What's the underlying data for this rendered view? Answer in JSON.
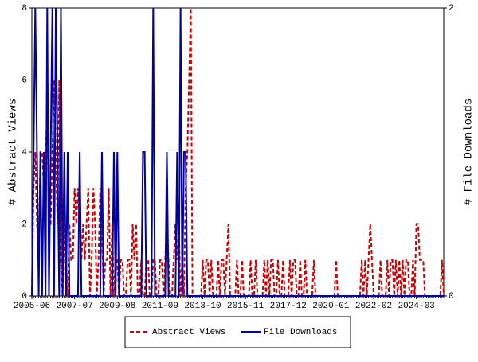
{
  "chart_data": {
    "type": "line",
    "ylabel": "# Abstract Views",
    "y2label": "# File Downloads",
    "categories": [
      "2005-06",
      null,
      null,
      null,
      null,
      null,
      null,
      null,
      null,
      null,
      null,
      null,
      null,
      null,
      null,
      null,
      null,
      null,
      null,
      null,
      null,
      null,
      null,
      null,
      null,
      "2007-07",
      null,
      null,
      null,
      null,
      null,
      null,
      null,
      null,
      null,
      null,
      null,
      null,
      null,
      null,
      null,
      null,
      null,
      null,
      null,
      null,
      null,
      null,
      null,
      null,
      "2009-08",
      null,
      null,
      null,
      null,
      null,
      null,
      null,
      null,
      null,
      null,
      null,
      null,
      null,
      null,
      null,
      null,
      null,
      null,
      null,
      null,
      null,
      null,
      null,
      null,
      "2011-09",
      null,
      null,
      null,
      null,
      null,
      null,
      null,
      null,
      null,
      null,
      null,
      null,
      null,
      null,
      null,
      null,
      null,
      null,
      null,
      null,
      null,
      null,
      null,
      null,
      "2013-10",
      null,
      null,
      null,
      null,
      null,
      null,
      null,
      null,
      null,
      null,
      null,
      null,
      null,
      null,
      null,
      null,
      null,
      null,
      null,
      null,
      null,
      null,
      null,
      null,
      "2015-11",
      null,
      null,
      null,
      null,
      null,
      null,
      null,
      null,
      null,
      null,
      null,
      null,
      null,
      null,
      null,
      null,
      null,
      null,
      null,
      null,
      null,
      null,
      null,
      null,
      "2017-12",
      null,
      null,
      null,
      null,
      null,
      null,
      null,
      null,
      null,
      null,
      null,
      null,
      null,
      null,
      null,
      null,
      null,
      null,
      null,
      null,
      null,
      null,
      null,
      null,
      "2020-01",
      null,
      null,
      null,
      null,
      null,
      null,
      null,
      null,
      null,
      null,
      null,
      null,
      null,
      null,
      null,
      null,
      null,
      null,
      null,
      null,
      null,
      null,
      null,
      null,
      "2022-02",
      null,
      null,
      null,
      null,
      null,
      null,
      null,
      null,
      null,
      null,
      null,
      null,
      null,
      null,
      null,
      null,
      null,
      null,
      null,
      null,
      null,
      null,
      null,
      null,
      "2024-03",
      null,
      null,
      null,
      null,
      null,
      null,
      null,
      null,
      null,
      null,
      null,
      null,
      null,
      null,
      null,
      null
    ],
    "series": [
      {
        "name": "Abstract Views",
        "color": "#cc0000",
        "dashed": true,
        "values": [
          0,
          3,
          4,
          2,
          1,
          4,
          4,
          3,
          4,
          5,
          2,
          2,
          4,
          6,
          4,
          2,
          6,
          1,
          0,
          2,
          1,
          0,
          2,
          1,
          1,
          3,
          2,
          3,
          2,
          1,
          2,
          1,
          2,
          3,
          0,
          1,
          3,
          2,
          0,
          1,
          3,
          2,
          0,
          1,
          1,
          3,
          0,
          2,
          0,
          1,
          1,
          0,
          1,
          1,
          0,
          0,
          1,
          1,
          0,
          2,
          1,
          2,
          0,
          0,
          1,
          0,
          0,
          1,
          1,
          0,
          0,
          1,
          1,
          0,
          0,
          1,
          1,
          0,
          1,
          2,
          1,
          0,
          0,
          1,
          2,
          1,
          2,
          0,
          1,
          0,
          3,
          4,
          6,
          8,
          0,
          0,
          0,
          0,
          0,
          0,
          1,
          0,
          1,
          1,
          0,
          1,
          0,
          0,
          0,
          1,
          0,
          1,
          1,
          0,
          1,
          2,
          0,
          0,
          0,
          0,
          1,
          0,
          0,
          1,
          0,
          0,
          0,
          0,
          1,
          0,
          0,
          1,
          0,
          0,
          0,
          0,
          1,
          0,
          1,
          0,
          1,
          1,
          0,
          0,
          1,
          0,
          0,
          1,
          0,
          0,
          0,
          1,
          0,
          1,
          1,
          0,
          0,
          1,
          0,
          0,
          1,
          0,
          0,
          0,
          0,
          1,
          0,
          0,
          0,
          0,
          0,
          0,
          0,
          0,
          0,
          0,
          0,
          0,
          1,
          0,
          0,
          0,
          0,
          0,
          0,
          0,
          0,
          0,
          0,
          0,
          0,
          0,
          0,
          1,
          0,
          1,
          0,
          1,
          2,
          1,
          0,
          0,
          0,
          0,
          1,
          0,
          0,
          0,
          1,
          0,
          1,
          1,
          0,
          1,
          0,
          1,
          0,
          1,
          0,
          1,
          1,
          0,
          0,
          1,
          0,
          2,
          2,
          1,
          1,
          1,
          0,
          0,
          0,
          0,
          0,
          0,
          0,
          0,
          0,
          0,
          1,
          0
        ]
      },
      {
        "name": "File Downloads",
        "color": "#0000aa",
        "axis": "y2",
        "values": [
          0,
          1,
          2,
          1,
          0,
          1,
          0,
          1,
          0,
          2,
          0,
          1,
          2,
          0,
          2,
          1,
          0,
          2,
          0,
          1,
          0,
          1,
          0,
          0,
          0,
          0,
          0,
          0,
          1,
          0,
          0,
          0,
          0,
          0,
          0,
          0,
          0,
          0,
          0,
          0,
          0,
          1,
          0,
          0,
          0,
          0,
          0,
          0,
          1,
          0,
          1,
          0,
          0,
          0,
          0,
          0,
          0,
          0,
          0,
          0,
          0,
          0,
          0,
          0,
          0,
          1,
          1,
          0,
          0,
          0,
          0,
          2,
          0,
          0,
          0,
          0,
          0,
          0,
          0,
          1,
          0,
          0,
          0,
          0,
          0,
          1,
          0,
          2,
          0,
          1,
          1,
          0,
          0,
          0,
          0,
          0,
          0,
          0,
          0,
          0,
          0,
          0,
          0,
          0,
          0,
          0,
          0,
          0,
          0,
          0,
          0,
          0,
          0,
          0,
          0,
          0,
          0,
          0,
          0,
          0,
          0,
          0,
          0,
          0,
          0,
          0,
          0,
          0,
          0,
          0,
          0,
          0,
          0,
          0,
          0,
          0,
          0,
          0,
          0,
          0,
          0,
          0,
          0,
          0,
          0,
          0,
          0,
          0,
          0,
          0,
          0,
          0,
          0,
          0,
          0,
          0,
          0,
          0,
          0,
          0,
          0,
          0,
          0,
          0,
          0,
          0,
          0,
          0,
          0,
          0,
          0,
          0,
          0,
          0,
          0,
          0,
          0,
          0,
          0,
          0,
          0,
          0,
          0,
          0,
          0,
          0,
          0,
          0,
          0,
          0,
          0,
          0,
          0,
          0,
          0,
          0,
          0,
          0,
          0,
          0,
          0,
          0,
          0,
          0,
          0,
          0,
          0,
          0,
          0,
          0,
          0,
          0,
          0,
          0,
          0,
          0,
          0,
          0,
          0,
          0,
          0,
          0,
          0,
          0,
          0,
          0,
          0,
          0,
          0,
          0,
          0,
          0,
          0,
          0,
          0,
          0,
          0,
          0,
          0,
          0,
          0,
          0
        ]
      }
    ],
    "ylim": [
      0,
      8
    ],
    "yticks": [
      0,
      2,
      4,
      6,
      8
    ],
    "y2lim": [
      0,
      2
    ],
    "y2ticks": [
      0,
      2
    ],
    "legend": "bottom"
  }
}
